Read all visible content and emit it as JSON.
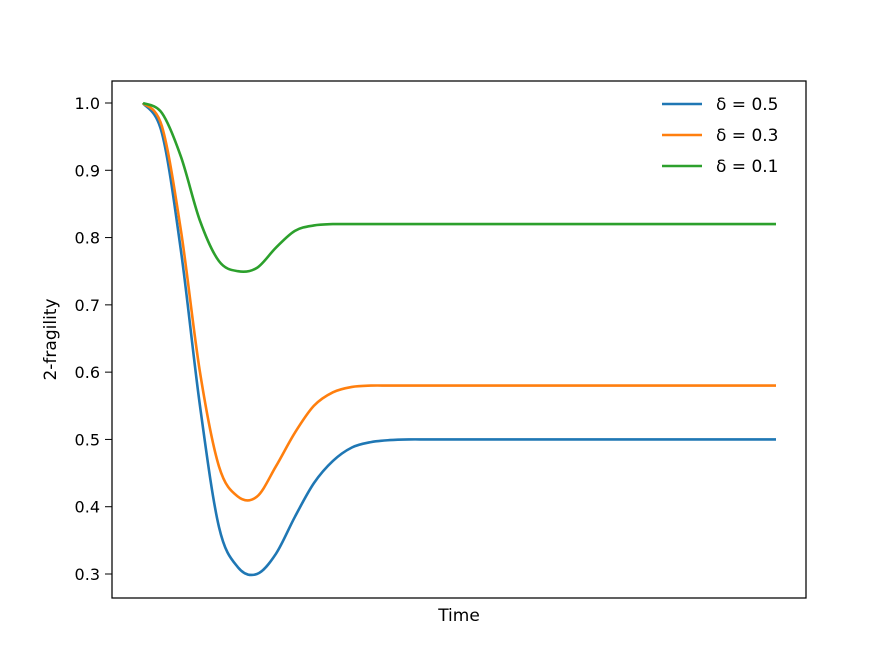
{
  "chart_data": {
    "type": "line",
    "title": "",
    "xlabel": "Time",
    "ylabel": "2-fragility",
    "xlim": [
      0,
      1
    ],
    "ylim": [
      0.27,
      1.04
    ],
    "x_ticks_shown": false,
    "y_ticks": [
      "0.3",
      "0.4",
      "0.5",
      "0.6",
      "0.7",
      "0.8",
      "0.9",
      "1.0"
    ],
    "grid": false,
    "legend_position": "top-right",
    "x": [
      0.0,
      0.03,
      0.06,
      0.09,
      0.12,
      0.15,
      0.18,
      0.21,
      0.24,
      0.27,
      0.3,
      0.33,
      0.36,
      0.39,
      0.42,
      0.45,
      0.5,
      0.6,
      0.7,
      0.8,
      0.9,
      1.0
    ],
    "series": [
      {
        "name": "δ = 0.5",
        "color": "#1f77b4",
        "values": [
          1.0,
          0.955,
          0.78,
          0.55,
          0.37,
          0.31,
          0.3,
          0.33,
          0.385,
          0.435,
          0.468,
          0.488,
          0.496,
          0.499,
          0.5,
          0.5,
          0.5,
          0.5,
          0.5,
          0.5,
          0.5,
          0.5
        ]
      },
      {
        "name": "δ = 0.3",
        "color": "#ff7f0e",
        "values": [
          1.0,
          0.965,
          0.81,
          0.6,
          0.46,
          0.415,
          0.415,
          0.46,
          0.51,
          0.55,
          0.57,
          0.578,
          0.58,
          0.58,
          0.58,
          0.58,
          0.58,
          0.58,
          0.58,
          0.58,
          0.58,
          0.58
        ]
      },
      {
        "name": "δ = 0.1",
        "color": "#2ca02c",
        "values": [
          1.0,
          0.985,
          0.92,
          0.825,
          0.765,
          0.75,
          0.755,
          0.785,
          0.81,
          0.818,
          0.82,
          0.82,
          0.82,
          0.82,
          0.82,
          0.82,
          0.82,
          0.82,
          0.82,
          0.82,
          0.82,
          0.82
        ]
      }
    ]
  }
}
